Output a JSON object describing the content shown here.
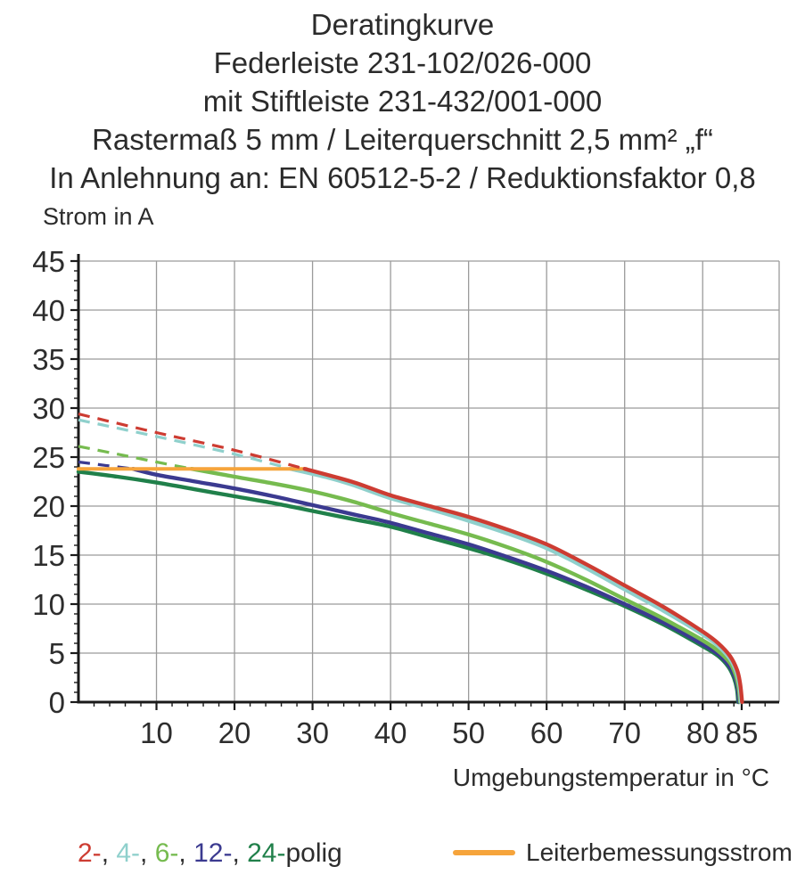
{
  "header": {
    "lines": [
      "Deratingkurve",
      "Federleiste 231-102/026-000",
      "mit Stiftleiste 231-432/001-000",
      "Rastermaß 5 mm / Leiterquerschnitt 2,5 mm² „f“",
      "In Anlehnung an: EN 60512-5-2 / Reduktionsfaktor 0,8"
    ]
  },
  "chart_data": {
    "type": "line",
    "ylabel": "Strom in A",
    "xlabel": "Umgebungstemperatur in °C",
    "xlim": [
      0,
      89.8
    ],
    "ylim": [
      0,
      45
    ],
    "x_gridlines": [
      10,
      20,
      30,
      40,
      50,
      60,
      70,
      80
    ],
    "x_labeled_ticks": [
      10,
      20,
      30,
      40,
      50,
      60,
      70,
      80,
      85
    ],
    "x_minor_step": 2,
    "x_minor_max": 88,
    "y_labeled_ticks": [
      0,
      5,
      10,
      15,
      20,
      25,
      30,
      35,
      40,
      45
    ],
    "y_minor_step": 1,
    "grid_color": "#9b9b9b",
    "axis_color": "#1a1a1a",
    "label_color": "#2d2d2d",
    "note": "dashed portion of each curve lies above the rated conductor current line",
    "series": [
      {
        "name": "24-polig",
        "color": "#20804a",
        "dash_until_x": 0,
        "points": [
          [
            0,
            23.5
          ],
          [
            5,
            23.0
          ],
          [
            10,
            22.4
          ],
          [
            15,
            21.7
          ],
          [
            20,
            21.0
          ],
          [
            25,
            20.3
          ],
          [
            30,
            19.5
          ],
          [
            35,
            18.7
          ],
          [
            40,
            17.9
          ],
          [
            45,
            16.8
          ],
          [
            50,
            15.7
          ],
          [
            55,
            14.5
          ],
          [
            60,
            13.1
          ],
          [
            65,
            11.5
          ],
          [
            70,
            9.8
          ],
          [
            75,
            7.9
          ],
          [
            80,
            5.7
          ],
          [
            82,
            4.7
          ],
          [
            83.3,
            3.6
          ],
          [
            84,
            2.5
          ],
          [
            84.4,
            1.3
          ],
          [
            84.55,
            0
          ]
        ]
      },
      {
        "name": "12-polig",
        "color": "#3b3a90",
        "dash_until_x": 7,
        "points": [
          [
            0,
            24.5
          ],
          [
            3.5,
            24.15
          ],
          [
            7,
            23.8
          ],
          [
            10,
            23.2
          ],
          [
            15,
            22.5
          ],
          [
            20,
            21.8
          ],
          [
            25,
            21.0
          ],
          [
            30,
            20.1
          ],
          [
            35,
            19.2
          ],
          [
            40,
            18.3
          ],
          [
            45,
            17.2
          ],
          [
            50,
            16.1
          ],
          [
            55,
            14.8
          ],
          [
            60,
            13.4
          ],
          [
            65,
            11.8
          ],
          [
            70,
            10.0
          ],
          [
            75,
            8.1
          ],
          [
            80,
            5.9
          ],
          [
            82,
            4.9
          ],
          [
            83.3,
            3.8
          ],
          [
            84.1,
            2.6
          ],
          [
            84.5,
            1.4
          ],
          [
            84.65,
            0
          ]
        ]
      },
      {
        "name": "6-polig",
        "color": "#76bb4f",
        "dash_until_x": 14.5,
        "points": [
          [
            0,
            26.1
          ],
          [
            5,
            25.3
          ],
          [
            10,
            24.5
          ],
          [
            14.5,
            23.8
          ],
          [
            20,
            23.0
          ],
          [
            25,
            22.3
          ],
          [
            30,
            21.5
          ],
          [
            35,
            20.5
          ],
          [
            40,
            19.3
          ],
          [
            45,
            18.2
          ],
          [
            50,
            17.1
          ],
          [
            55,
            15.8
          ],
          [
            60,
            14.3
          ],
          [
            65,
            12.5
          ],
          [
            70,
            10.5
          ],
          [
            75,
            8.5
          ],
          [
            80,
            6.3
          ],
          [
            82,
            5.2
          ],
          [
            83.5,
            4.0
          ],
          [
            84.2,
            2.8
          ],
          [
            84.6,
            1.5
          ],
          [
            84.8,
            0
          ]
        ]
      },
      {
        "name": "4-polig",
        "color": "#8fd0cc",
        "dash_until_x": 27.2,
        "points": [
          [
            0,
            28.8
          ],
          [
            10,
            27.1
          ],
          [
            20,
            25.3
          ],
          [
            27.2,
            23.8
          ],
          [
            32,
            22.9
          ],
          [
            35,
            22.2
          ],
          [
            40,
            20.8
          ],
          [
            45,
            19.7
          ],
          [
            50,
            18.5
          ],
          [
            55,
            17.2
          ],
          [
            60,
            15.7
          ],
          [
            65,
            13.7
          ],
          [
            70,
            11.5
          ],
          [
            75,
            9.3
          ],
          [
            80,
            6.9
          ],
          [
            82,
            5.7
          ],
          [
            83.5,
            4.4
          ],
          [
            84.3,
            3.1
          ],
          [
            84.7,
            1.7
          ],
          [
            84.9,
            0
          ]
        ]
      },
      {
        "name": "2-polig",
        "color": "#cd3c32",
        "dash_until_x": 29,
        "points": [
          [
            0,
            29.4
          ],
          [
            10,
            27.5
          ],
          [
            20,
            25.7
          ],
          [
            29,
            23.8
          ],
          [
            35,
            22.5
          ],
          [
            40,
            21.1
          ],
          [
            45,
            20.0
          ],
          [
            50,
            18.9
          ],
          [
            55,
            17.6
          ],
          [
            60,
            16.1
          ],
          [
            65,
            14.1
          ],
          [
            70,
            11.9
          ],
          [
            75,
            9.7
          ],
          [
            80,
            7.2
          ],
          [
            82,
            6.0
          ],
          [
            83.5,
            4.7
          ],
          [
            84.4,
            3.3
          ],
          [
            84.8,
            1.9
          ],
          [
            85.05,
            0
          ]
        ]
      }
    ],
    "rated_line": {
      "name": "Leiterbemessungsstrom",
      "color": "#f6a43b",
      "y": 23.8,
      "x_start": 0,
      "x_end": 29.2
    }
  },
  "legend": {
    "separator": ", ",
    "poles_suffix": "polig",
    "poles": [
      {
        "label": "2-",
        "color": "#cd3c32"
      },
      {
        "label": "4-",
        "color": "#8fd0cc"
      },
      {
        "label": "6-",
        "color": "#76bb4f"
      },
      {
        "label": "12-",
        "color": "#3b3a90"
      },
      {
        "label": "24-",
        "color": "#20804a"
      }
    ],
    "rated": {
      "label": "Leiterbemessungsstrom",
      "color": "#f6a43b"
    }
  }
}
